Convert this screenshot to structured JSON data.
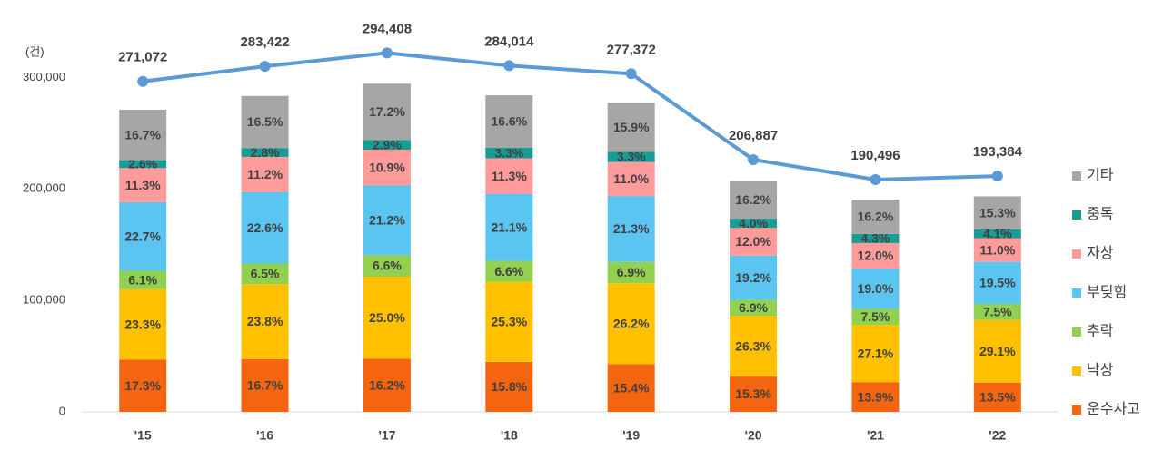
{
  "chart_data": {
    "type": "stacked-bar-line",
    "y_unit_label": "(건)",
    "categories": [
      "'15",
      "'16",
      "'17",
      "'18",
      "'19",
      "'20",
      "'21",
      "'22"
    ],
    "ylim": [
      0,
      350000
    ],
    "yticks": [
      0,
      {
        "value": 100000,
        "label": "100,000"
      },
      {
        "value": 200000,
        "label": "200,000"
      },
      {
        "value": 300000,
        "label": "300,000"
      }
    ],
    "y2lim": [
      0,
      320000
    ],
    "totals": {
      "color": "#5b9bd5",
      "axis": "y2",
      "values": [
        271072,
        283422,
        294408,
        284014,
        277372,
        206887,
        190496,
        193384
      ],
      "value_labels": [
        "271,072",
        "283,422",
        "294,408",
        "284,014",
        "277,372",
        "206,887",
        "190,496",
        "193,384"
      ]
    },
    "series": [
      {
        "name": "운수사고",
        "color": "#f5650f",
        "values": [
          17.3,
          16.7,
          16.2,
          15.8,
          15.4,
          15.3,
          13.9,
          13.5
        ],
        "value_labels": [
          "17.3%",
          "16.7%",
          "16.2%",
          "15.8%",
          "15.4%",
          "15.3%",
          "13.9%",
          "13.5%"
        ]
      },
      {
        "name": "낙상",
        "color": "#ffc000",
        "values": [
          23.3,
          23.8,
          25.0,
          25.3,
          26.2,
          26.3,
          27.1,
          29.1
        ],
        "value_labels": [
          "23.3%",
          "23.8%",
          "25.0%",
          "25.3%",
          "26.2%",
          "26.3%",
          "27.1%",
          "29.1%"
        ]
      },
      {
        "name": "추락",
        "color": "#92d050",
        "values": [
          6.1,
          6.5,
          6.6,
          6.6,
          6.9,
          6.9,
          7.5,
          7.5
        ],
        "value_labels": [
          "6.1%",
          "6.5%",
          "6.6%",
          "6.6%",
          "6.9%",
          "6.9%",
          "7.5%",
          "7.5%"
        ]
      },
      {
        "name": "부딪힘",
        "color": "#5bc5f2",
        "values": [
          22.7,
          22.6,
          21.2,
          21.1,
          21.3,
          19.2,
          19.0,
          19.5
        ],
        "value_labels": [
          "22.7%",
          "22.6%",
          "21.2%",
          "21.1%",
          "21.3%",
          "19.2%",
          "19.0%",
          "19.5%"
        ]
      },
      {
        "name": "자상",
        "color": "#ff9b9b",
        "values": [
          11.3,
          11.2,
          10.9,
          11.3,
          11.0,
          12.0,
          12.0,
          11.0
        ],
        "value_labels": [
          "11.3%",
          "11.2%",
          "10.9%",
          "11.3%",
          "11.0%",
          "12.0%",
          "12.0%",
          "11.0%"
        ]
      },
      {
        "name": "중독",
        "color": "#179c96",
        "values": [
          2.6,
          2.8,
          2.9,
          3.3,
          3.3,
          4.0,
          4.3,
          4.1
        ],
        "value_labels": [
          "2.6%",
          "2.8%",
          "2.9%",
          "3.3%",
          "3.3%",
          "4.0%",
          "4.3%",
          "4.1%"
        ]
      },
      {
        "name": "기타",
        "color": "#a6a6a6",
        "values": [
          16.7,
          16.5,
          17.2,
          16.6,
          15.9,
          16.2,
          16.2,
          15.3
        ],
        "value_labels": [
          "16.7%",
          "16.5%",
          "17.2%",
          "16.6%",
          "15.9%",
          "16.2%",
          "16.2%",
          "15.3%"
        ]
      }
    ]
  }
}
